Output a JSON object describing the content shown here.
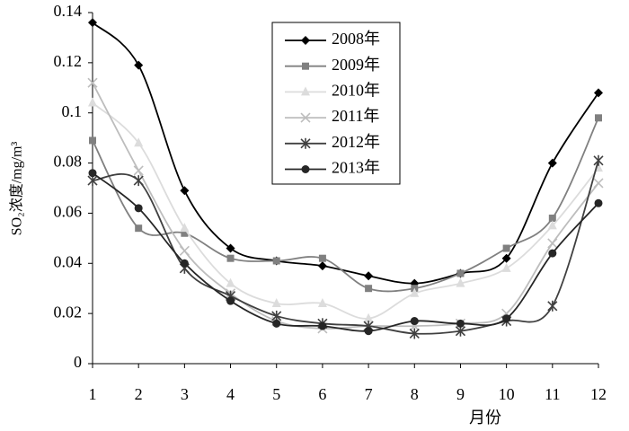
{
  "chart_data": {
    "type": "line",
    "xlabel": "月份",
    "ylabel": "SO₂浓度/mg/m³",
    "x": [
      1,
      2,
      3,
      4,
      5,
      6,
      7,
      8,
      9,
      10,
      11,
      12
    ],
    "xlim": [
      1,
      12
    ],
    "xticks": [
      1,
      2,
      3,
      4,
      5,
      6,
      7,
      8,
      9,
      10,
      11,
      12
    ],
    "ylim": [
      0,
      0.14
    ],
    "yticks": [
      0,
      0.02,
      0.04,
      0.06,
      0.08,
      0.1,
      0.12,
      0.14
    ],
    "grid": false,
    "legend": "upper center",
    "series": [
      {
        "name": "2008年",
        "color": "#000000",
        "marker": "diamond",
        "values": [
          0.136,
          0.119,
          0.069,
          0.046,
          0.041,
          0.039,
          0.035,
          0.032,
          0.036,
          0.042,
          0.08,
          0.108
        ]
      },
      {
        "name": "2009年",
        "color": "#808080",
        "marker": "square",
        "values": [
          0.089,
          0.054,
          0.052,
          0.042,
          0.041,
          0.042,
          0.03,
          0.03,
          0.036,
          0.046,
          0.058,
          0.098
        ]
      },
      {
        "name": "2010年",
        "color": "#dcdcdc",
        "marker": "triangle",
        "values": [
          0.104,
          0.088,
          0.054,
          0.032,
          0.024,
          0.024,
          0.018,
          0.028,
          0.032,
          0.038,
          0.055,
          0.078
        ]
      },
      {
        "name": "2011年",
        "color": "#bdbdbd",
        "marker": "x",
        "values": [
          0.112,
          0.077,
          0.045,
          0.028,
          0.017,
          0.014,
          0.015,
          0.015,
          0.016,
          0.02,
          0.048,
          0.072
        ]
      },
      {
        "name": "2012年",
        "color": "#404040",
        "marker": "star",
        "values": [
          0.073,
          0.073,
          0.038,
          0.027,
          0.019,
          0.016,
          0.015,
          0.012,
          0.013,
          0.017,
          0.023,
          0.081
        ]
      },
      {
        "name": "2013年",
        "color": "#262626",
        "marker": "circle",
        "values": [
          0.076,
          0.062,
          0.04,
          0.025,
          0.016,
          0.015,
          0.013,
          0.017,
          0.016,
          0.018,
          0.044,
          0.064
        ]
      }
    ]
  }
}
